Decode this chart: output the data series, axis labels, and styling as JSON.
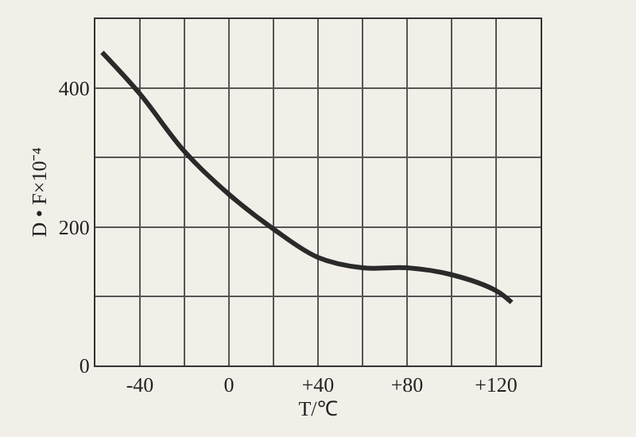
{
  "chart_data": {
    "type": "line",
    "xlabel": "T/℃",
    "ylabel": "D • F×10⁻⁴",
    "x": [
      -57,
      -40,
      -20,
      0,
      20,
      40,
      60,
      80,
      100,
      120,
      127
    ],
    "series": [
      {
        "color": "#2a2a2a",
        "values": [
          452,
          392,
          309,
          247,
          197,
          156,
          141,
          141,
          131,
          108,
          91
        ]
      }
    ],
    "xlim": [
      -60,
      140
    ],
    "xticks": [
      {
        "value": -40,
        "label": "-40"
      },
      {
        "value": -20,
        "label": null
      },
      0,
      {
        "value": 20,
        "label": null
      },
      {
        "value": 40,
        "label": "+40"
      },
      {
        "value": 60,
        "label": null
      },
      {
        "value": 80,
        "label": "+80"
      },
      {
        "value": 100,
        "label": null
      },
      {
        "value": 120,
        "label": "+120"
      },
      {
        "value": 140,
        "label": null
      }
    ],
    "ylim": [
      0,
      500
    ],
    "yticks": [
      0,
      {
        "value": 100,
        "label": null
      },
      200,
      {
        "value": 300,
        "label": null
      },
      400,
      {
        "value": 500,
        "label": null
      }
    ],
    "grid": true,
    "marker": "none",
    "line_style": "solid"
  }
}
